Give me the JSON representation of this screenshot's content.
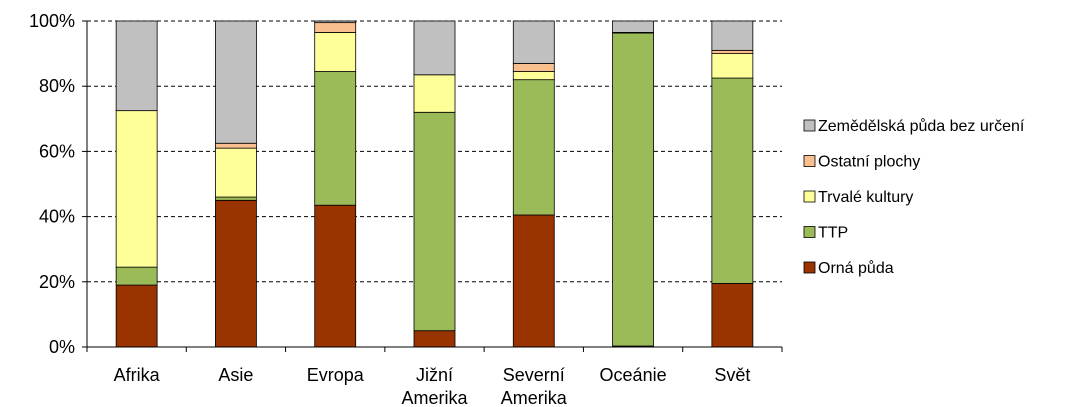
{
  "chart_data": {
    "type": "bar",
    "stacked": true,
    "percent": true,
    "categories": [
      [
        "Afrika"
      ],
      [
        "Asie"
      ],
      [
        "Evropa"
      ],
      [
        "Jižní",
        "Amerika"
      ],
      [
        "Severní",
        "Amerika"
      ],
      [
        "Oceánie"
      ],
      [
        "Svět"
      ]
    ],
    "series": [
      {
        "name": "Orná půda",
        "color": "#993300",
        "values": [
          19,
          45,
          43.5,
          5,
          40.5,
          0.3,
          19.5
        ]
      },
      {
        "name": "TTP",
        "color": "#9BBB59",
        "values": [
          5.5,
          1,
          41,
          67,
          41.5,
          96,
          63
        ]
      },
      {
        "name": "Trvalé kultury",
        "color": "#FFFF99",
        "values": [
          48,
          15,
          12,
          11.5,
          2.5,
          0.2,
          7.5
        ]
      },
      {
        "name": "Ostatní plochy",
        "color": "#FABF8F",
        "values": [
          0,
          1.5,
          3,
          0,
          2.5,
          0,
          1
        ]
      },
      {
        "name": "Zemědělská půda bez určení",
        "color": "#C0C0C0",
        "values": [
          27.5,
          37.5,
          0.5,
          16.5,
          13,
          3.5,
          9
        ]
      }
    ],
    "y_ticks": [
      "0%",
      "20%",
      "40%",
      "60%",
      "80%",
      "100%"
    ],
    "ylim": [
      0,
      100
    ],
    "grid": "horizontal dashed",
    "legend": {
      "position": "right",
      "order": [
        "Zemědělská půda bez určení",
        "Ostatní plochy",
        "Trvalé kultury",
        "TTP",
        "Orná půda"
      ]
    }
  }
}
